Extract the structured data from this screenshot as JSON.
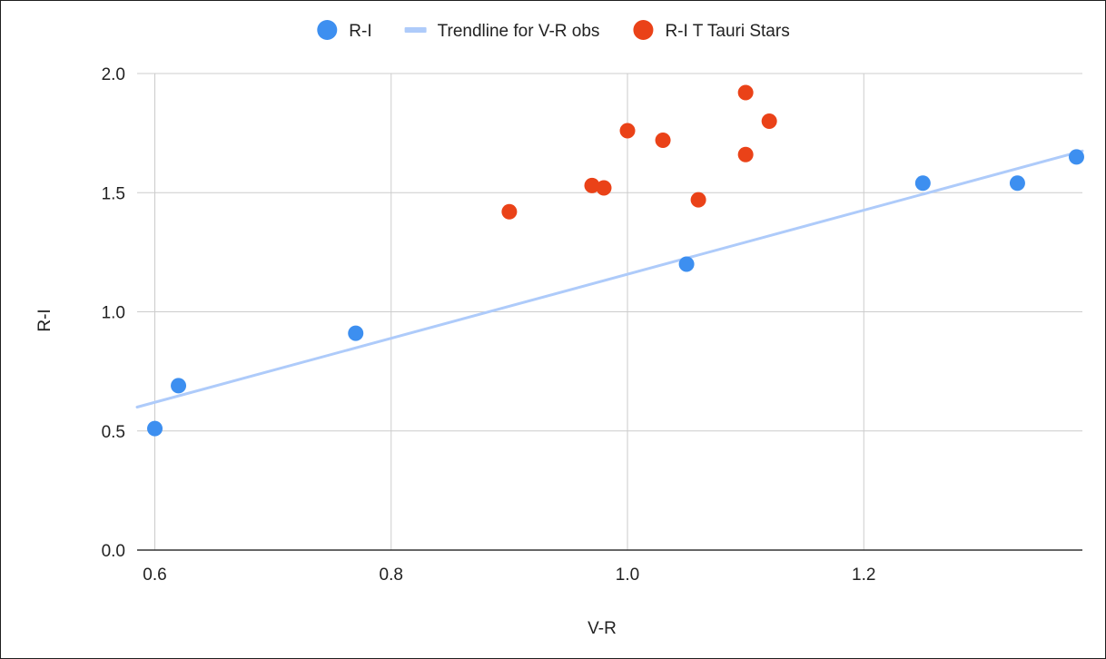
{
  "chart_data": {
    "type": "scatter",
    "title": "",
    "xlabel": "V-R",
    "ylabel": "R-I",
    "xlim": [
      0.585,
      1.385
    ],
    "ylim": [
      0,
      2.0
    ],
    "x_ticks": [
      0.6,
      0.8,
      1.0,
      1.2
    ],
    "x_tick_labels": [
      "0.6",
      "0.8",
      "1.0",
      "1.2"
    ],
    "y_ticks": [
      0,
      0.5,
      1.0,
      1.5,
      2.0
    ],
    "y_tick_labels": [
      "0.0",
      "0.5",
      "1.0",
      "1.5",
      "2.0"
    ],
    "grid": true,
    "legend_position": "top",
    "series": [
      {
        "name": "R-I",
        "kind": "points",
        "color": "#3d8ff0",
        "points": [
          {
            "x": 0.6,
            "y": 0.51
          },
          {
            "x": 0.62,
            "y": 0.69
          },
          {
            "x": 0.77,
            "y": 0.91
          },
          {
            "x": 1.05,
            "y": 1.2
          },
          {
            "x": 1.25,
            "y": 1.54
          },
          {
            "x": 1.33,
            "y": 1.54
          },
          {
            "x": 1.38,
            "y": 1.65
          }
        ]
      },
      {
        "name": "Trendline for V-R obs",
        "kind": "line",
        "color": "#aecbfa",
        "points": [
          {
            "x": 0.585,
            "y": 0.6
          },
          {
            "x": 1.385,
            "y": 1.675
          }
        ]
      },
      {
        "name": "R-I T Tauri Stars",
        "kind": "points",
        "color": "#ea4218",
        "points": [
          {
            "x": 0.9,
            "y": 1.42
          },
          {
            "x": 0.97,
            "y": 1.53
          },
          {
            "x": 0.98,
            "y": 1.52
          },
          {
            "x": 1.0,
            "y": 1.76
          },
          {
            "x": 1.03,
            "y": 1.72
          },
          {
            "x": 1.06,
            "y": 1.47
          },
          {
            "x": 1.1,
            "y": 1.92
          },
          {
            "x": 1.1,
            "y": 1.66
          },
          {
            "x": 1.12,
            "y": 1.8
          }
        ]
      }
    ]
  }
}
